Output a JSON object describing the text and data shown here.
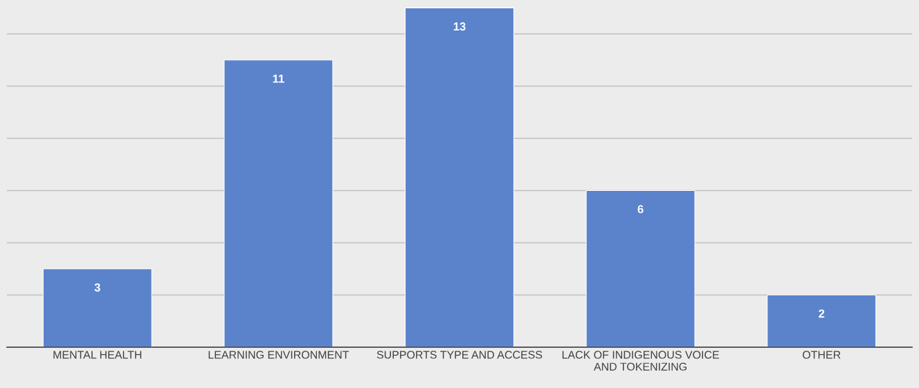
{
  "chart_data": {
    "type": "bar",
    "categories": [
      "MENTAL HEALTH",
      "LEARNING ENVIRONMENT",
      "SUPPORTS TYPE AND ACCESS",
      "LACK OF INDIGENOUS VOICE\nAND TOKENIZING",
      "OTHER"
    ],
    "values": [
      3,
      11,
      13,
      6,
      2
    ],
    "color": "#5b83cc",
    "ylim": [
      0,
      13.3
    ],
    "yticks": [
      {
        "value": 0,
        "label": null
      },
      {
        "value": 2,
        "label": null
      },
      {
        "value": 4,
        "label": null
      },
      {
        "value": 6,
        "label": null
      },
      {
        "value": 8,
        "label": null
      },
      {
        "value": 10,
        "label": null
      },
      {
        "value": 12,
        "label": null
      }
    ],
    "tick_labels": "x",
    "grid": "y",
    "data_labels": true
  }
}
